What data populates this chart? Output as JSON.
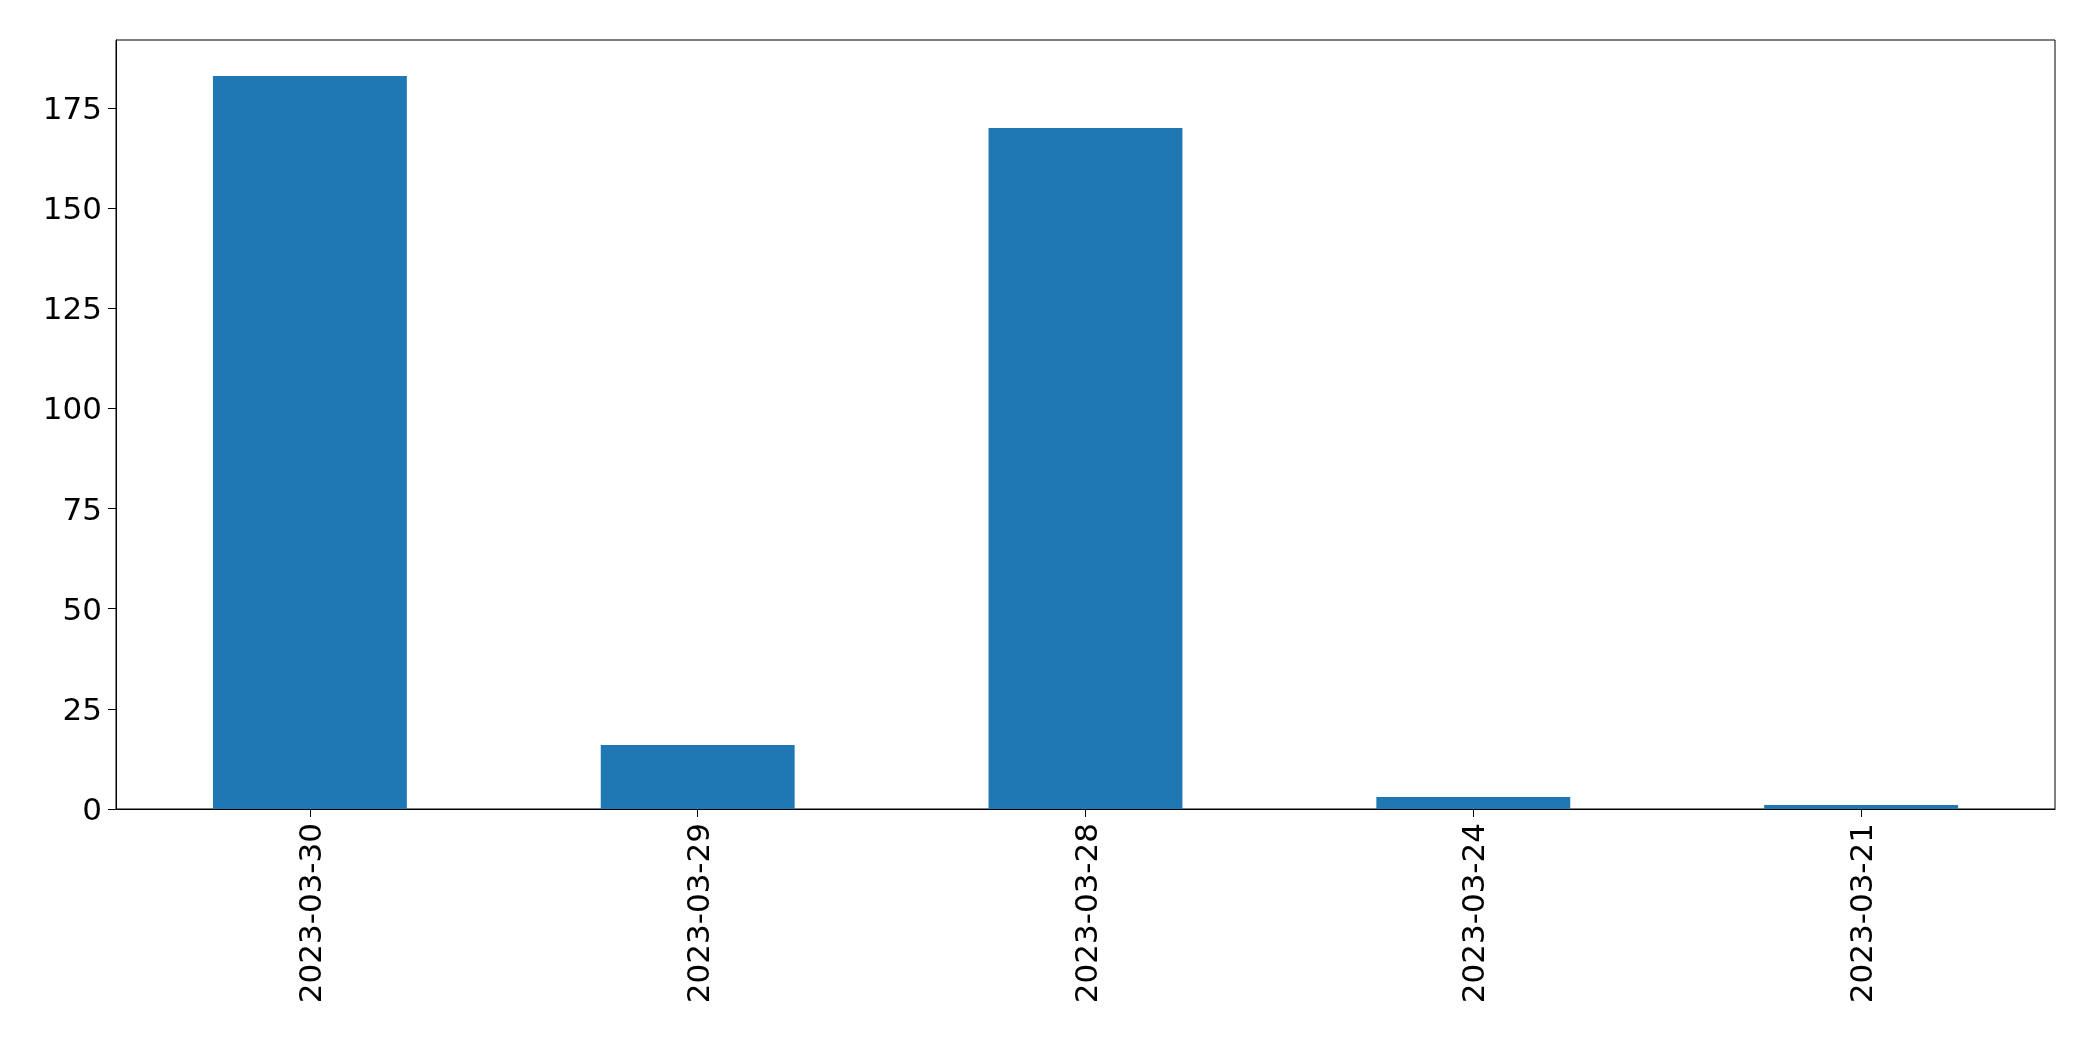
{
  "chart_data": {
    "type": "bar",
    "categories": [
      "2023-03-30",
      "2023-03-29",
      "2023-03-28",
      "2023-03-24",
      "2023-03-21"
    ],
    "values": [
      183,
      16,
      170,
      3,
      1
    ],
    "color": "#1f77b4",
    "ylim": [
      0,
      192
    ],
    "yticks": [
      0,
      25,
      50,
      75,
      100,
      125,
      150,
      175
    ],
    "grid": false
  }
}
